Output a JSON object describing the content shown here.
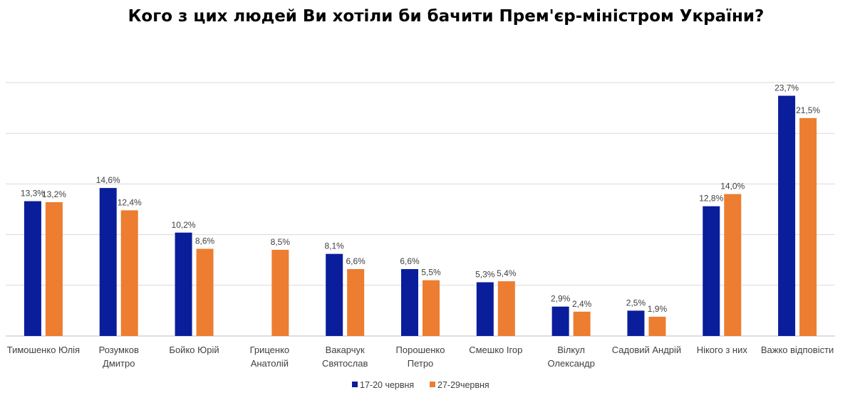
{
  "chart_data": {
    "type": "bar",
    "title": "Кого з цих людей Ви хотіли би бачити Прем'єр-міністром України?",
    "xlabel": "",
    "ylabel": "",
    "ylim": [
      0,
      25
    ],
    "grid": true,
    "legend_position": "bottom",
    "categories": [
      [
        "Тимошенко Юлія"
      ],
      [
        "Розумков",
        "Дмитро"
      ],
      [
        "Бойко Юрій"
      ],
      [
        "Гриценко",
        "Анатолій"
      ],
      [
        "Вакарчук",
        "Святослав"
      ],
      [
        "Порошенко",
        "Петро"
      ],
      [
        "Смешко Ігор"
      ],
      [
        "Вілкул",
        "Олександр"
      ],
      [
        "Садовий Андрій"
      ],
      [
        "Нікого з них"
      ],
      [
        "Важко відповісти"
      ]
    ],
    "series": [
      {
        "name": "17-20 червня",
        "color": "#0A1E9C",
        "values": [
          13.3,
          14.6,
          10.2,
          null,
          8.1,
          6.6,
          5.3,
          2.9,
          2.5,
          12.8,
          23.7
        ],
        "labels": [
          "13,3%",
          "14,6%",
          "10,2%",
          null,
          "8,1%",
          "6,6%",
          "5,3%",
          "2,9%",
          "2,5%",
          "12,8%",
          "23,7%"
        ]
      },
      {
        "name": "27-29червня",
        "color": "#ED7D31",
        "values": [
          13.2,
          12.4,
          8.6,
          8.5,
          6.6,
          5.5,
          5.4,
          2.4,
          1.9,
          14.0,
          21.5
        ],
        "labels": [
          "13,2%",
          "12,4%",
          "8,6%",
          "8,5%",
          "6,6%",
          "5,5%",
          "5,4%",
          "2,4%",
          "1,9%",
          "14,0%",
          "21,5%"
        ]
      }
    ]
  }
}
